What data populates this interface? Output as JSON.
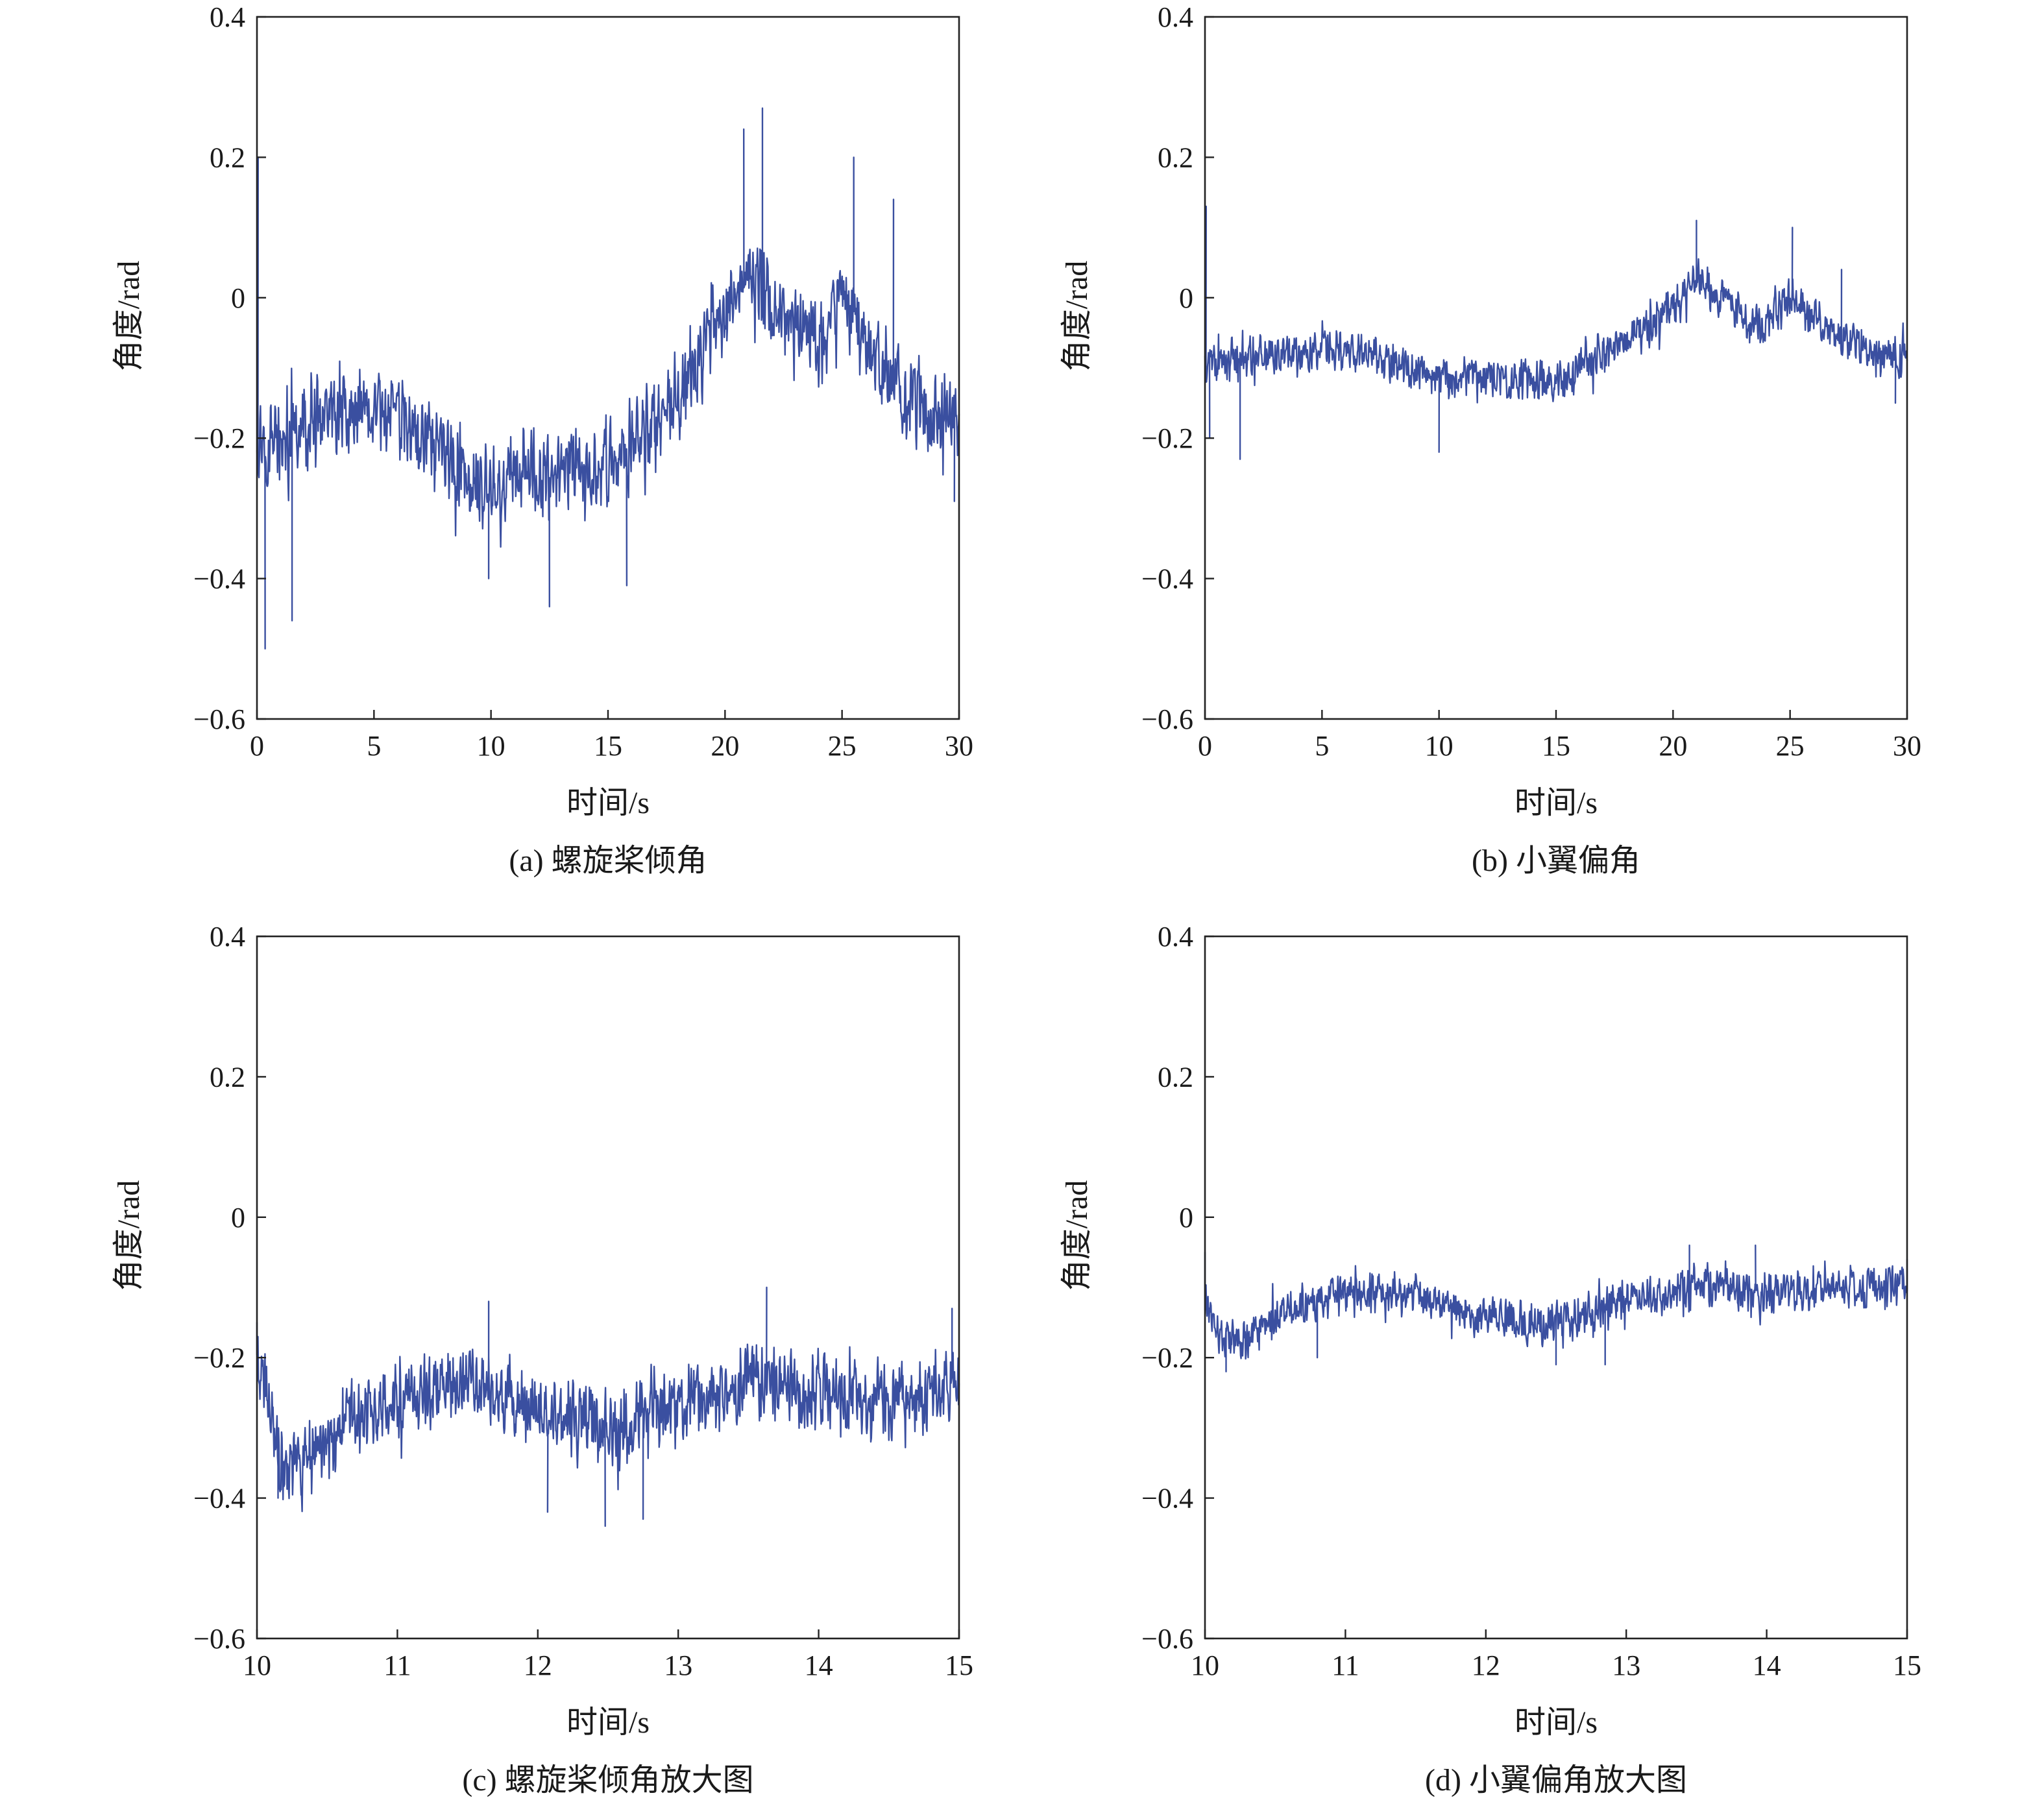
{
  "figure": {
    "line_color": "#3a4fa0",
    "axis_color": "#222222"
  },
  "chart_data": [
    {
      "id": "a",
      "type": "line",
      "caption": "(a) 螺旋桨倾角",
      "xlabel": "时间/s",
      "ylabel": "角度/rad",
      "xlim": [
        0,
        30
      ],
      "ylim": [
        -0.6,
        0.4
      ],
      "xticks": [
        "0",
        "5",
        "10",
        "15",
        "20",
        "25",
        "30"
      ],
      "yticks": [
        "0.4",
        "0.2",
        "0",
        "−0.2",
        "−0.4",
        "−0.6"
      ],
      "grid": false,
      "series": [
        {
          "x": [
            0,
            1,
            2,
            3,
            4,
            5,
            6,
            7,
            8,
            9,
            10,
            11,
            12,
            13,
            14,
            15,
            16,
            17,
            18,
            19,
            20,
            20.5,
            21,
            21.5,
            22,
            23,
            24,
            25,
            26,
            27,
            28,
            29,
            30
          ],
          "values": [
            -0.2,
            -0.2,
            -0.19,
            -0.17,
            -0.17,
            -0.17,
            -0.18,
            -0.19,
            -0.22,
            -0.25,
            -0.27,
            -0.26,
            -0.25,
            -0.25,
            -0.25,
            -0.24,
            -0.21,
            -0.18,
            -0.14,
            -0.09,
            -0.03,
            0.01,
            0.04,
            0.02,
            -0.02,
            -0.05,
            -0.07,
            0.0,
            -0.06,
            -0.11,
            -0.15,
            -0.17,
            -0.18
          ],
          "noise": 0.05,
          "spikes": [
            [
              0.05,
              0.2
            ],
            [
              0.35,
              -0.5
            ],
            [
              1.5,
              -0.46
            ],
            [
              9.9,
              -0.4
            ],
            [
              12.5,
              -0.44
            ],
            [
              15.8,
              -0.41
            ],
            [
              20.8,
              0.24
            ],
            [
              21.6,
              0.27
            ],
            [
              25.5,
              0.2
            ],
            [
              27.2,
              0.14
            ],
            [
              29.8,
              -0.29
            ]
          ]
        }
      ]
    },
    {
      "id": "b",
      "type": "line",
      "caption": "(b) 小翼偏角",
      "xlabel": "时间/s",
      "ylabel": "角度/rad",
      "xlim": [
        0,
        30
      ],
      "ylim": [
        -0.6,
        0.4
      ],
      "xticks": [
        "0",
        "5",
        "10",
        "15",
        "20",
        "25",
        "30"
      ],
      "yticks": [
        "0.4",
        "0.2",
        "0",
        "−0.2",
        "−0.4",
        "−0.6"
      ],
      "grid": false,
      "series": [
        {
          "x": [
            0,
            1,
            2,
            3,
            5,
            7,
            9,
            10,
            12,
            14,
            15,
            16,
            17,
            18,
            19,
            20,
            21,
            22,
            23,
            24,
            25,
            26,
            27,
            28,
            29,
            30
          ],
          "values": [
            -0.1,
            -0.09,
            -0.08,
            -0.08,
            -0.08,
            -0.08,
            -0.1,
            -0.11,
            -0.11,
            -0.12,
            -0.12,
            -0.1,
            -0.08,
            -0.06,
            -0.04,
            -0.01,
            0.03,
            0.0,
            -0.02,
            -0.04,
            0.0,
            -0.03,
            -0.05,
            -0.07,
            -0.08,
            -0.09
          ],
          "noise": 0.025,
          "spikes": [
            [
              0.05,
              0.13
            ],
            [
              0.2,
              -0.2
            ],
            [
              1.5,
              -0.23
            ],
            [
              10.0,
              -0.22
            ],
            [
              21.0,
              0.11
            ],
            [
              25.1,
              0.1
            ],
            [
              27.2,
              0.04
            ],
            [
              29.5,
              -0.15
            ]
          ]
        }
      ]
    },
    {
      "id": "c",
      "type": "line",
      "caption": "(c) 螺旋桨倾角放大图",
      "xlabel": "时间/s",
      "ylabel": "角度/rad",
      "xlim": [
        10,
        15
      ],
      "ylim": [
        -0.6,
        0.4
      ],
      "xticks": [
        "10",
        "11",
        "12",
        "13",
        "14",
        "15"
      ],
      "yticks": [
        "0.4",
        "0.2",
        "0",
        "−0.2",
        "−0.4",
        "−0.6"
      ],
      "grid": false,
      "series": [
        {
          "x": [
            10,
            10.2,
            10.5,
            11,
            11.5,
            12,
            12.5,
            13,
            13.5,
            14,
            14.5,
            15
          ],
          "values": [
            -0.2,
            -0.37,
            -0.32,
            -0.26,
            -0.24,
            -0.28,
            -0.3,
            -0.27,
            -0.23,
            -0.25,
            -0.26,
            -0.24
          ],
          "noise": 0.045,
          "spikes": [
            [
              10.0,
              -0.15
            ],
            [
              10.15,
              -0.4
            ],
            [
              11.65,
              -0.12
            ],
            [
              12.07,
              -0.42
            ],
            [
              12.48,
              -0.44
            ],
            [
              12.75,
              -0.43
            ],
            [
              13.63,
              -0.1
            ],
            [
              14.95,
              -0.13
            ]
          ]
        }
      ]
    },
    {
      "id": "d",
      "type": "line",
      "caption": "(d) 小翼偏角放大图",
      "xlabel": "时间/s",
      "ylabel": "角度/rad",
      "xlim": [
        10,
        15
      ],
      "ylim": [
        -0.6,
        0.4
      ],
      "xticks": [
        "10",
        "11",
        "12",
        "13",
        "14",
        "15"
      ],
      "yticks": [
        "0.4",
        "0.2",
        "0",
        "−0.2",
        "−0.4",
        "−0.6"
      ],
      "grid": false,
      "series": [
        {
          "x": [
            10,
            10.1,
            10.3,
            10.6,
            11,
            11.5,
            12,
            12.3,
            12.6,
            13,
            13.5,
            14,
            14.5,
            15
          ],
          "values": [
            -0.12,
            -0.17,
            -0.17,
            -0.13,
            -0.11,
            -0.11,
            -0.14,
            -0.15,
            -0.15,
            -0.12,
            -0.1,
            -0.11,
            -0.1,
            -0.1
          ],
          "noise": 0.025,
          "spikes": [
            [
              10.0,
              -0.05
            ],
            [
              10.15,
              -0.22
            ],
            [
              10.8,
              -0.2
            ],
            [
              12.5,
              -0.21
            ],
            [
              12.85,
              -0.21
            ],
            [
              13.45,
              -0.04
            ],
            [
              13.92,
              -0.04
            ],
            [
              15.0,
              -0.06
            ]
          ]
        }
      ]
    }
  ]
}
